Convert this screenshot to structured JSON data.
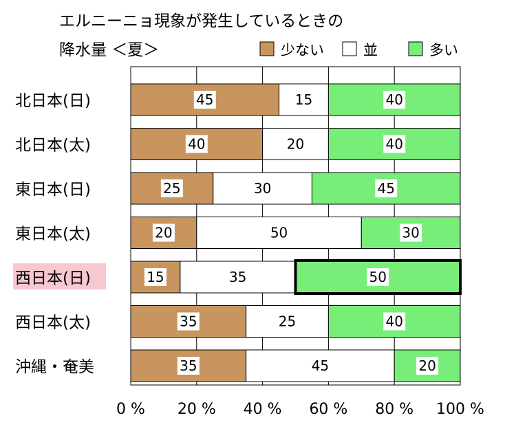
{
  "chart_data": {
    "type": "bar",
    "orientation": "horizontal",
    "stacked": true,
    "title_lines": [
      "エルニーニョ現象が発生しているときの",
      "降水量 ＜夏＞"
    ],
    "categories": [
      "北日本(日)",
      "北日本(太)",
      "東日本(日)",
      "東日本(太)",
      "西日本(日)",
      "西日本(太)",
      "沖縄・奄美"
    ],
    "highlighted_category": "西日本(日)",
    "highlighted_segment": {
      "category": "西日本(日)",
      "series": "多い"
    },
    "series": [
      {
        "name": "少ない",
        "color": "#c8955f",
        "values": [
          45,
          40,
          25,
          20,
          15,
          35,
          35
        ]
      },
      {
        "name": "並",
        "color": "#ffffff",
        "values": [
          15,
          20,
          30,
          50,
          35,
          25,
          45
        ]
      },
      {
        "name": "多い",
        "color": "#77ee77",
        "values": [
          40,
          40,
          45,
          30,
          50,
          40,
          20
        ]
      }
    ],
    "xlim": [
      0,
      100
    ],
    "xticks": [
      0,
      20,
      40,
      60,
      80,
      100
    ],
    "xtick_labels": [
      "0 %",
      "20 %",
      "40 %",
      "60 %",
      "80 %",
      "100 %"
    ],
    "grid": true,
    "legend_position": "top-right",
    "highlight_label_color": "#f8c8d0"
  }
}
